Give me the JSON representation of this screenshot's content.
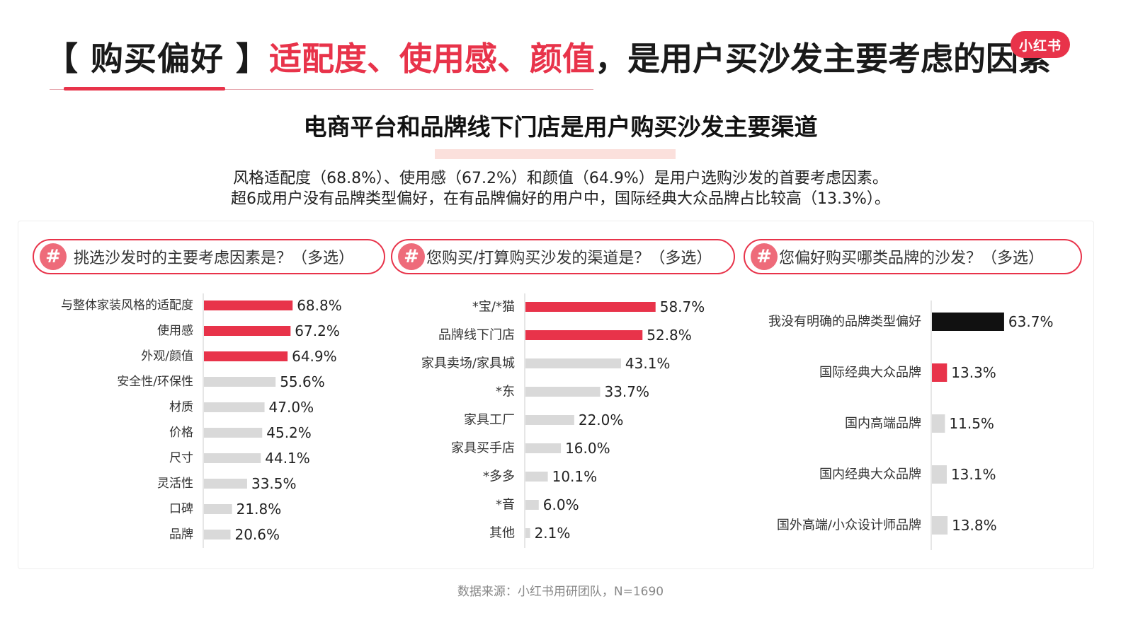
{
  "header": {
    "title_bracket_open": "【 购买偏好 】",
    "title_red": "适配度、使用感、颜值",
    "title_black": "，是用户买沙发主要考虑的因素",
    "logo": "小红书",
    "subtitle": "电商平台和品牌线下门店是用户购买沙发主要渠道",
    "desc_line1": "风格适配度（68.8%）、使用感（67.2%）和颜值（64.9%）是用户选购沙发的首要考虑因素。",
    "desc_line2": "超6成用户没有品牌类型偏好，在有品牌偏好的用户中，国际经典大众品牌占比较高（13.3%）。"
  },
  "questions": [
    {
      "hash": "#",
      "text": "挑选沙发时的主要考虑因素是？（多选）"
    },
    {
      "hash": "#",
      "text": "您购买/打算购买沙发的渠道是？（多选）"
    },
    {
      "hash": "#",
      "text": "您偏好购买哪类品牌的沙发？（多选）"
    }
  ],
  "colors": {
    "red": "#e8334a",
    "gray": "#d9d9d9",
    "black": "#111111"
  },
  "footer": "数据来源：小红书用研团队，N=1690",
  "chart_data": [
    {
      "type": "bar",
      "orientation": "horizontal",
      "categories": [
        "与整体家装风格的适配度",
        "使用感",
        "外观/颜值",
        "安全性/环保性",
        "材质",
        "价格",
        "尺寸",
        "灵活性",
        "口碑",
        "品牌"
      ],
      "values": [
        68.8,
        67.2,
        64.9,
        55.6,
        47.0,
        45.2,
        44.1,
        33.5,
        21.8,
        20.6
      ],
      "labels": [
        "68.8%",
        "67.2%",
        "64.9%",
        "55.6%",
        "47.0%",
        "45.2%",
        "44.1%",
        "33.5%",
        "21.8%",
        "20.6%"
      ],
      "colors": [
        "#e8334a",
        "#e8334a",
        "#e8334a",
        "#d9d9d9",
        "#d9d9d9",
        "#d9d9d9",
        "#d9d9d9",
        "#d9d9d9",
        "#d9d9d9",
        "#d9d9d9"
      ],
      "unit": "%"
    },
    {
      "type": "bar",
      "orientation": "horizontal",
      "categories": [
        "*宝/*猫",
        "品牌线下门店",
        "家具卖场/家具城",
        "*东",
        "家具工厂",
        "家具买手店",
        "*多多",
        "*音",
        "其他"
      ],
      "values": [
        58.7,
        52.8,
        43.1,
        33.7,
        22.0,
        16.0,
        10.1,
        6.0,
        2.1
      ],
      "labels": [
        "58.7%",
        "52.8%",
        "43.1%",
        "33.7%",
        "22.0%",
        "16.0%",
        "10.1%",
        "6.0%",
        "2.1%"
      ],
      "colors": [
        "#e8334a",
        "#e8334a",
        "#d9d9d9",
        "#d9d9d9",
        "#d9d9d9",
        "#d9d9d9",
        "#d9d9d9",
        "#d9d9d9",
        "#d9d9d9"
      ],
      "unit": "%"
    },
    {
      "type": "bar",
      "orientation": "horizontal",
      "categories": [
        "我没有明确的品牌类型偏好",
        "国际经典大众品牌",
        "国内高端品牌",
        "国内经典大众品牌",
        "国外高端/小众设计师品牌"
      ],
      "values": [
        63.7,
        13.3,
        11.5,
        13.1,
        13.8
      ],
      "labels": [
        "63.7%",
        "13.3%",
        "11.5%",
        "13.1%",
        "13.8%"
      ],
      "colors": [
        "#111111",
        "#e8334a",
        "#d9d9d9",
        "#d9d9d9",
        "#d9d9d9"
      ],
      "unit": "%"
    }
  ]
}
